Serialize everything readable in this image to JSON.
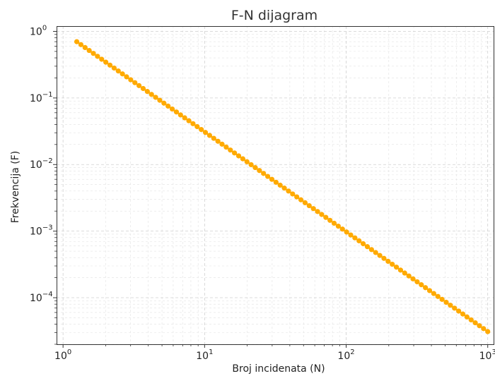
{
  "chart_data": {
    "type": "line",
    "title": "F-N dijagram",
    "xlabel": "Broj incidenata (N)",
    "ylabel": "Frekvencija (F)",
    "x_scale": "log",
    "y_scale": "log",
    "xlim": [
      0.9,
      1100
    ],
    "ylim": [
      2e-05,
      1.2
    ],
    "x_ticks": [
      {
        "base": "10",
        "exp": "0",
        "value": 1
      },
      {
        "base": "10",
        "exp": "1",
        "value": 10
      },
      {
        "base": "10",
        "exp": "2",
        "value": 100
      },
      {
        "base": "10",
        "exp": "3",
        "value": 1000
      }
    ],
    "y_ticks": [
      {
        "base": "10",
        "exp": "0",
        "value": 1
      },
      {
        "base": "10",
        "exp": "−1",
        "value": 0.1
      },
      {
        "base": "10",
        "exp": "−2",
        "value": 0.01
      },
      {
        "base": "10",
        "exp": "−3",
        "value": 0.001
      },
      {
        "base": "10",
        "exp": "−4",
        "value": 0.0001
      }
    ],
    "grid": true,
    "series": [
      {
        "color": "#ffaa00",
        "marker": "circle",
        "points": 100,
        "x_start": 1.25,
        "x_end": 1000,
        "y_start": 0.7,
        "y_end": 3.1e-05
      }
    ]
  }
}
